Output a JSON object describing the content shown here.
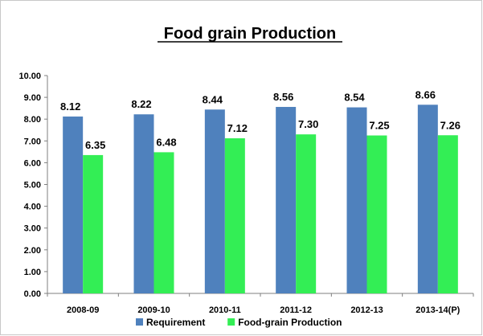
{
  "chart_data": {
    "type": "bar",
    "title": "Food grain Production",
    "xlabel": "",
    "ylabel": "",
    "ylim": [
      0,
      10
    ],
    "ytick_step": 1,
    "ytick_decimals": 2,
    "grid": false,
    "legend_position": "bottom",
    "categories": [
      "2008-09",
      "2009-10",
      "2010-11",
      "2011-12",
      "2012-13",
      "2013-14(P)"
    ],
    "series": [
      {
        "name": "Requirement",
        "color": "#4f81bd",
        "values": [
          8.12,
          8.22,
          8.44,
          8.56,
          8.54,
          8.66
        ]
      },
      {
        "name": "Food-grain Production",
        "color": "#33ee55",
        "values": [
          6.35,
          6.48,
          7.12,
          7.3,
          7.25,
          7.26
        ]
      }
    ]
  }
}
